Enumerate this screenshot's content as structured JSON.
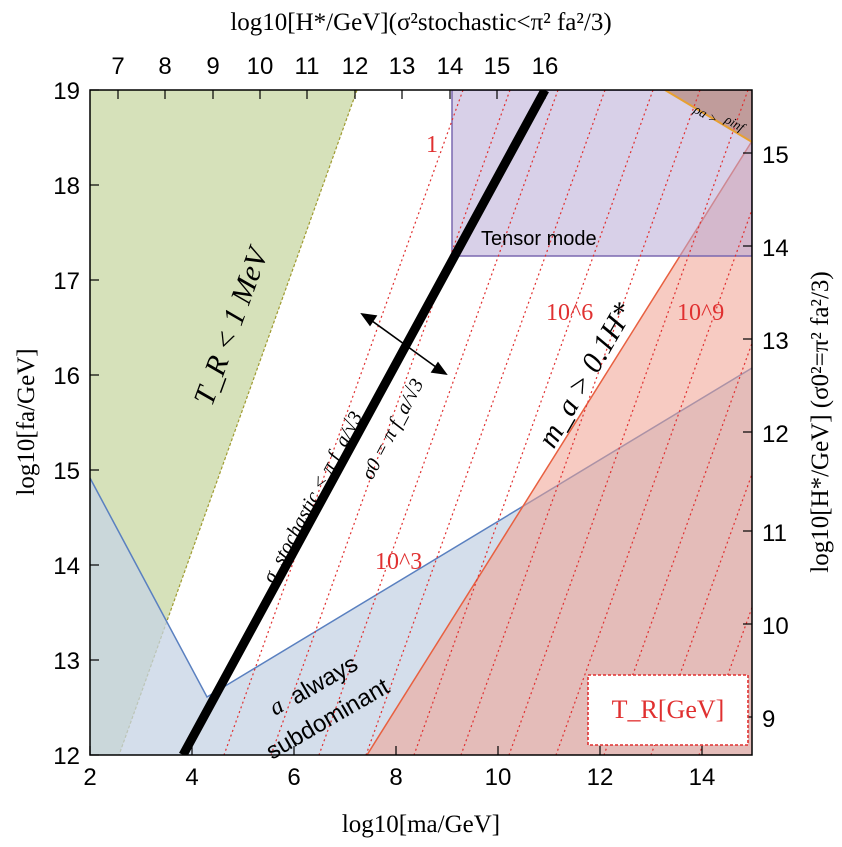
{
  "chart_data": {
    "type": "area",
    "xlabel": "log10[ma/GeV]",
    "ylabel": "log10[fa/GeV]",
    "top_label": "log10[H*/GeV](σ²stochastic<π² fa²/3)",
    "right_label": "log10[H*/GeV] (σ0²=π² fa²/3)",
    "xlim": [
      2,
      15
    ],
    "ylim": [
      12,
      19
    ],
    "x_ticks": [
      "2",
      "4",
      "6",
      "8",
      "10",
      "12",
      "14"
    ],
    "y_ticks": [
      "12",
      "13",
      "14",
      "15",
      "16",
      "17",
      "18",
      "19"
    ],
    "top_ticks": [
      "7",
      "8",
      "9",
      "10",
      "11",
      "12",
      "13",
      "14",
      "15",
      "16"
    ],
    "right_ticks": [
      "9",
      "10",
      "11",
      "12",
      "13",
      "14",
      "15"
    ],
    "regions": [
      {
        "name": "T_R < 1 MeV",
        "label": "T_R < 1 MeV",
        "color": "#cfdcae"
      },
      {
        "name": "a always subdominant",
        "label_a": "a",
        "label_rest": "always",
        "label_2": "subdominant",
        "color": "#c5d3e4"
      },
      {
        "name": "m_a > 0.1H*",
        "label": "m_a > 0.1H*",
        "color": "#f3b5a5"
      },
      {
        "name": "Tensor mode",
        "label": "Tensor mode",
        "color": "#d4cce2"
      },
      {
        "name": "rho_a > rho_inf",
        "label_a": "ρa >",
        "label_b": "ρinf",
        "color": "#c39a8a"
      }
    ],
    "lines": [
      {
        "label": "σ_stochastic < π f_a/√3",
        "color": "#000000"
      },
      {
        "label": "σ0 = π f_a/√3",
        "color": "#000000"
      }
    ],
    "contours": {
      "quantity": "T_R[GeV]",
      "labels": [
        "1",
        "10^3",
        "10^6",
        "10^9"
      ],
      "color": "#e03030"
    },
    "legend_box": "T_R[GeV]",
    "accent_colors": {
      "contour": "#e03030",
      "tensor_edge": "#7a68b0",
      "subdominant_edge": "#5a80c0",
      "ma_edge": "#e86040",
      "black_line": "#000000"
    }
  }
}
